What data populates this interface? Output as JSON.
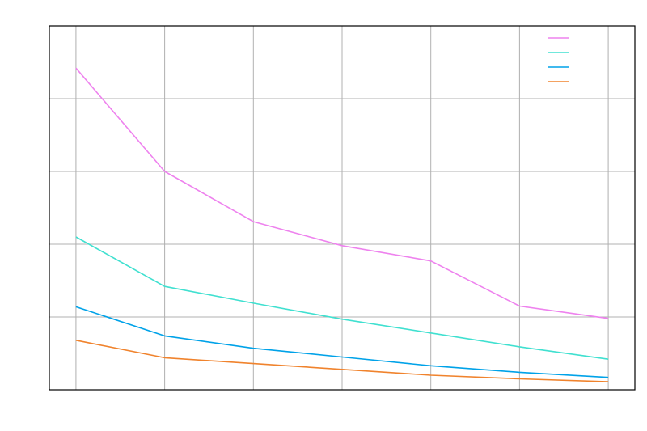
{
  "chart_data": {
    "type": "line",
    "title": "",
    "xlabel": "",
    "ylabel": "",
    "x": [
      0,
      1,
      2,
      3,
      4,
      5,
      6
    ],
    "xlim": [
      -0.3,
      6.3
    ],
    "ylim": [
      0,
      5
    ],
    "grid": true,
    "legend": {
      "position": "top-right"
    },
    "series": [
      {
        "color": "#ee82ee",
        "values": [
          4.42,
          3.0,
          2.31,
          1.98,
          1.77,
          1.15,
          0.98
        ]
      },
      {
        "color": "#40e0d0",
        "values": [
          2.1,
          1.42,
          1.19,
          0.97,
          0.78,
          0.59,
          0.42
        ]
      },
      {
        "color": "#00a2e8",
        "values": [
          1.14,
          0.74,
          0.57,
          0.45,
          0.33,
          0.24,
          0.17
        ]
      },
      {
        "color": "#f0832d",
        "values": [
          0.68,
          0.44,
          0.36,
          0.28,
          0.2,
          0.15,
          0.11
        ]
      }
    ]
  }
}
